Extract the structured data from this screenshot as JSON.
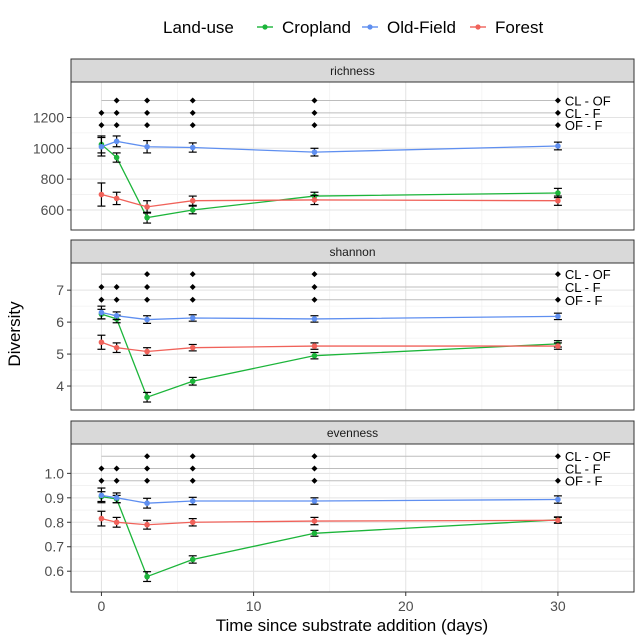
{
  "legend": {
    "title": "Land-use",
    "entries": [
      {
        "name": "Cropland",
        "color": "#1cb53a"
      },
      {
        "name": "Old-Field",
        "color": "#5f8ff0"
      },
      {
        "name": "Forest",
        "color": "#f0625a"
      }
    ]
  },
  "axis_labels": {
    "x": "Time since substrate addition (days)",
    "y": "Diversity"
  },
  "chart_data": {
    "type": "line",
    "xlabel": "Time since substrate addition (days)",
    "ylabel": "Diversity",
    "x_ticks": [
      0,
      10,
      20,
      30
    ],
    "x_range": [
      -2,
      35
    ],
    "time_points": [
      0,
      1,
      3,
      6,
      14,
      30
    ],
    "grid": true,
    "legend_position": "top",
    "panels": [
      {
        "title": "richness",
        "y_range": [
          470,
          1430
        ],
        "y_ticks": [
          600,
          800,
          1000,
          1200
        ],
        "series": [
          {
            "name": "Cropland",
            "color": "#1cb53a",
            "y": [
              1025,
              940,
              550,
              600,
              690,
              710
            ],
            "err": [
              55,
              30,
              35,
              25,
              25,
              30
            ]
          },
          {
            "name": "Old-Field",
            "color": "#5f8ff0",
            "y": [
              1010,
              1045,
              1010,
              1005,
              975,
              1015
            ],
            "err": [
              60,
              35,
              40,
              30,
              25,
              25
            ]
          },
          {
            "name": "Forest",
            "color": "#f0625a",
            "y": [
              700,
              675,
              620,
              660,
              665,
              660
            ],
            "err": [
              75,
              40,
              40,
              30,
              30,
              30
            ]
          }
        ],
        "comparisons": [
          {
            "label": "CL - OF",
            "y": 1310,
            "points": [
              1,
              3,
              6,
              14,
              30
            ]
          },
          {
            "label": "CL - F",
            "y": 1230,
            "points": [
              0,
              1,
              3,
              6,
              14,
              30
            ]
          },
          {
            "label": "OF - F",
            "y": 1150,
            "points": [
              0,
              1,
              3,
              6,
              14,
              30
            ]
          }
        ]
      },
      {
        "title": "shannon",
        "y_range": [
          3.25,
          7.85
        ],
        "y_ticks": [
          4,
          5,
          6,
          7
        ],
        "series": [
          {
            "name": "Cropland",
            "color": "#1cb53a",
            "y": [
              6.25,
              6.1,
              3.65,
              4.15,
              4.95,
              5.32
            ],
            "err": [
              0.15,
              0.12,
              0.15,
              0.12,
              0.1,
              0.1
            ]
          },
          {
            "name": "Old-Field",
            "color": "#5f8ff0",
            "y": [
              6.3,
              6.2,
              6.08,
              6.13,
              6.1,
              6.18
            ],
            "err": [
              0.2,
              0.12,
              0.12,
              0.1,
              0.1,
              0.1
            ]
          },
          {
            "name": "Forest",
            "color": "#f0625a",
            "y": [
              5.37,
              5.2,
              5.08,
              5.2,
              5.25,
              5.25
            ],
            "err": [
              0.22,
              0.15,
              0.12,
              0.1,
              0.1,
              0.1
            ]
          }
        ],
        "comparisons": [
          {
            "label": "CL - OF",
            "y": 7.5,
            "points": [
              3,
              6,
              14,
              30
            ]
          },
          {
            "label": "CL - F",
            "y": 7.1,
            "points": [
              0,
              1,
              3,
              6,
              14
            ]
          },
          {
            "label": "OF - F",
            "y": 6.7,
            "points": [
              0,
              1,
              3,
              6,
              14,
              30
            ]
          }
        ]
      },
      {
        "title": "evenness",
        "y_range": [
          0.515,
          1.12
        ],
        "y_ticks": [
          0.6,
          0.7,
          0.8,
          0.9,
          1.0
        ],
        "y_tick_labels": [
          "0.6",
          "0.7",
          "0.8",
          "0.9",
          "1.0"
        ],
        "series": [
          {
            "name": "Cropland",
            "color": "#1cb53a",
            "y": [
              0.905,
              0.895,
              0.578,
              0.648,
              0.755,
              0.81
            ],
            "err": [
              0.02,
              0.015,
              0.02,
              0.015,
              0.012,
              0.012
            ]
          },
          {
            "name": "Old-Field",
            "color": "#5f8ff0",
            "y": [
              0.91,
              0.9,
              0.878,
              0.887,
              0.887,
              0.893
            ],
            "err": [
              0.03,
              0.02,
              0.02,
              0.015,
              0.013,
              0.015
            ]
          },
          {
            "name": "Forest",
            "color": "#f0625a",
            "y": [
              0.815,
              0.8,
              0.79,
              0.8,
              0.805,
              0.808
            ],
            "err": [
              0.03,
              0.02,
              0.018,
              0.015,
              0.015,
              0.012
            ]
          }
        ],
        "comparisons": [
          {
            "label": "CL - OF",
            "y": 1.07,
            "points": [
              3,
              6,
              14,
              30
            ]
          },
          {
            "label": "CL - F",
            "y": 1.02,
            "points": [
              0,
              1,
              3,
              6,
              14
            ]
          },
          {
            "label": "OF - F",
            "y": 0.97,
            "points": [
              0,
              1,
              3,
              6,
              14,
              30
            ]
          }
        ]
      }
    ]
  }
}
